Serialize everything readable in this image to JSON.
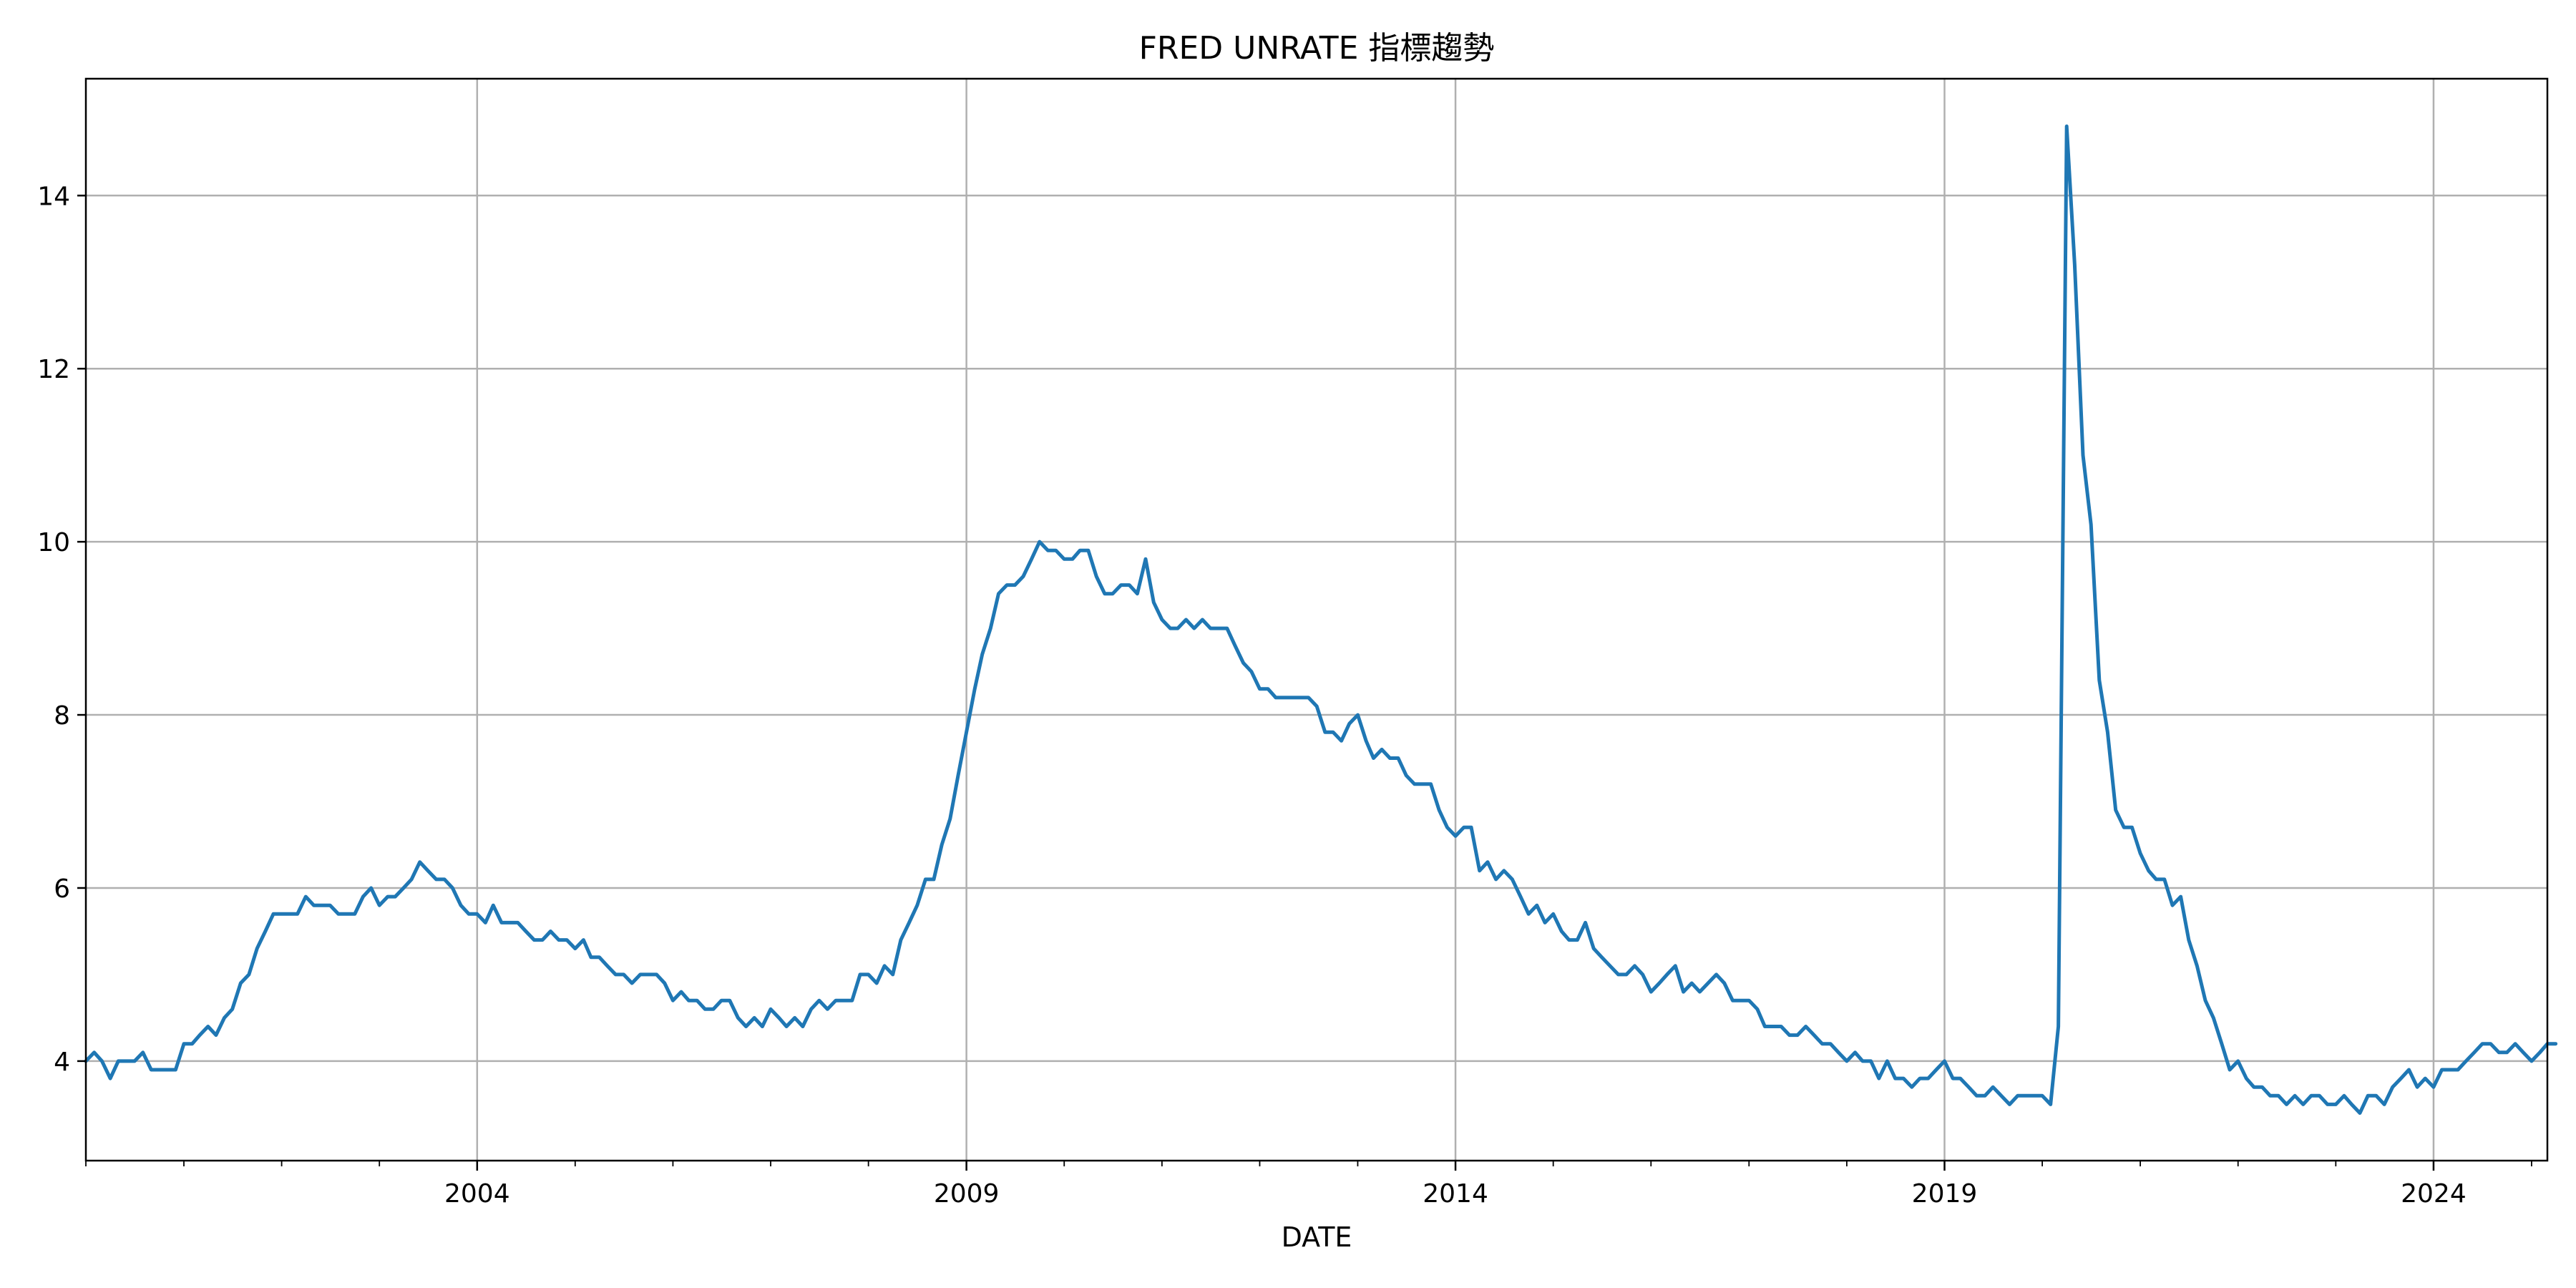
{
  "chart_data": {
    "type": "line",
    "title": "FRED UNRATE 指標趨勢",
    "xlabel": "DATE",
    "ylabel": "",
    "xlim": [
      "2000-01-01",
      "2025-03-01"
    ],
    "ylim": [
      2.85,
      15.35
    ],
    "x_ticks": [
      {
        "label": "2004",
        "date": "2004-01-01"
      },
      {
        "label": "2009",
        "date": "2009-01-01"
      },
      {
        "label": "2014",
        "date": "2014-01-01"
      },
      {
        "label": "2019",
        "date": "2019-01-01"
      },
      {
        "label": "2024",
        "date": "2024-01-01"
      }
    ],
    "y_ticks": [
      4,
      6,
      8,
      10,
      12,
      14
    ],
    "grid": true,
    "start": "2000-01",
    "frequency": "monthly",
    "series": [
      {
        "color": "#1f77b4",
        "values": [
          4.0,
          4.1,
          4.0,
          3.8,
          4.0,
          4.0,
          4.0,
          4.1,
          3.9,
          3.9,
          3.9,
          3.9,
          4.2,
          4.2,
          4.3,
          4.4,
          4.3,
          4.5,
          4.6,
          4.9,
          5.0,
          5.3,
          5.5,
          5.7,
          5.7,
          5.7,
          5.7,
          5.9,
          5.8,
          5.8,
          5.8,
          5.7,
          5.7,
          5.7,
          5.9,
          6.0,
          5.8,
          5.9,
          5.9,
          6.0,
          6.1,
          6.3,
          6.2,
          6.1,
          6.1,
          6.0,
          5.8,
          5.7,
          5.7,
          5.6,
          5.8,
          5.6,
          5.6,
          5.6,
          5.5,
          5.4,
          5.4,
          5.5,
          5.4,
          5.4,
          5.3,
          5.4,
          5.2,
          5.2,
          5.1,
          5.0,
          5.0,
          4.9,
          5.0,
          5.0,
          5.0,
          4.9,
          4.7,
          4.8,
          4.7,
          4.7,
          4.6,
          4.6,
          4.7,
          4.7,
          4.5,
          4.4,
          4.5,
          4.4,
          4.6,
          4.5,
          4.4,
          4.5,
          4.4,
          4.6,
          4.7,
          4.6,
          4.7,
          4.7,
          4.7,
          5.0,
          5.0,
          4.9,
          5.1,
          5.0,
          5.4,
          5.6,
          5.8,
          6.1,
          6.1,
          6.5,
          6.8,
          7.3,
          7.8,
          8.3,
          8.7,
          9.0,
          9.4,
          9.5,
          9.5,
          9.6,
          9.8,
          10.0,
          9.9,
          9.9,
          9.8,
          9.8,
          9.9,
          9.9,
          9.6,
          9.4,
          9.4,
          9.5,
          9.5,
          9.4,
          9.8,
          9.3,
          9.1,
          9.0,
          9.0,
          9.1,
          9.0,
          9.1,
          9.0,
          9.0,
          9.0,
          8.8,
          8.6,
          8.5,
          8.3,
          8.3,
          8.2,
          8.2,
          8.2,
          8.2,
          8.2,
          8.1,
          7.8,
          7.8,
          7.7,
          7.9,
          8.0,
          7.7,
          7.5,
          7.6,
          7.5,
          7.5,
          7.3,
          7.2,
          7.2,
          7.2,
          6.9,
          6.7,
          6.6,
          6.7,
          6.7,
          6.2,
          6.3,
          6.1,
          6.2,
          6.1,
          5.9,
          5.7,
          5.8,
          5.6,
          5.7,
          5.5,
          5.4,
          5.4,
          5.6,
          5.3,
          5.2,
          5.1,
          5.0,
          5.0,
          5.1,
          5.0,
          4.8,
          4.9,
          5.0,
          5.1,
          4.8,
          4.9,
          4.8,
          4.9,
          5.0,
          4.9,
          4.7,
          4.7,
          4.7,
          4.6,
          4.4,
          4.4,
          4.4,
          4.3,
          4.3,
          4.4,
          4.3,
          4.2,
          4.2,
          4.1,
          4.0,
          4.1,
          4.0,
          4.0,
          3.8,
          4.0,
          3.8,
          3.8,
          3.7,
          3.8,
          3.8,
          3.9,
          4.0,
          3.8,
          3.8,
          3.7,
          3.6,
          3.6,
          3.7,
          3.6,
          3.5,
          3.6,
          3.6,
          3.6,
          3.6,
          3.5,
          4.4,
          14.8,
          13.2,
          11.0,
          10.2,
          8.4,
          7.8,
          6.9,
          6.7,
          6.7,
          6.4,
          6.2,
          6.1,
          6.1,
          5.8,
          5.9,
          5.4,
          5.1,
          4.7,
          4.5,
          4.2,
          3.9,
          4.0,
          3.8,
          3.7,
          3.7,
          3.6,
          3.6,
          3.5,
          3.6,
          3.5,
          3.6,
          3.6,
          3.5,
          3.5,
          3.6,
          3.5,
          3.4,
          3.6,
          3.6,
          3.5,
          3.7,
          3.8,
          3.9,
          3.7,
          3.8,
          3.7,
          3.9,
          3.9,
          3.9,
          4.0,
          4.1,
          4.2,
          4.2,
          4.1,
          4.1,
          4.2,
          4.1,
          4.0,
          4.1,
          4.2,
          4.2
        ]
      }
    ]
  }
}
